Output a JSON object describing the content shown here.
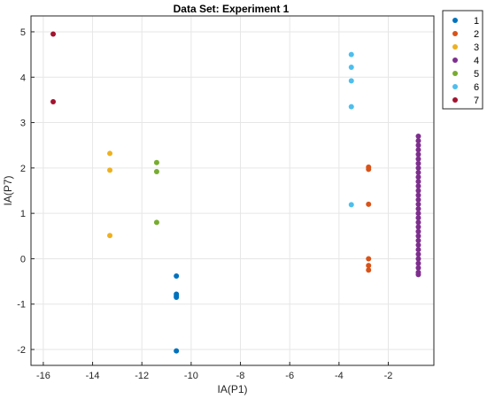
{
  "chart_data": {
    "type": "scatter",
    "title": "Data Set: Experiment 1",
    "xlabel": "IA(P1)",
    "ylabel": "IA(P7)",
    "xlim": [
      -16.5,
      -0.15
    ],
    "ylim": [
      -2.35,
      5.35
    ],
    "xticks": [
      -16,
      -14,
      -12,
      -10,
      -8,
      -6,
      -4,
      -2
    ],
    "yticks": [
      -2,
      -1,
      0,
      1,
      2,
      3,
      4,
      5
    ],
    "grid": true,
    "legend_position": "top-right, outside",
    "series": [
      {
        "name": "1",
        "color": "#0072BD",
        "points": [
          [
            -10.6,
            -0.38
          ],
          [
            -10.6,
            -0.78
          ],
          [
            -10.6,
            -0.82
          ],
          [
            -10.6,
            -0.85
          ],
          [
            -10.6,
            -2.03
          ]
        ]
      },
      {
        "name": "2",
        "color": "#D95319",
        "points": [
          [
            -2.8,
            2.02
          ],
          [
            -2.8,
            1.97
          ],
          [
            -2.8,
            1.2
          ],
          [
            -2.8,
            0.0
          ],
          [
            -2.8,
            -0.15
          ],
          [
            -2.8,
            -0.25
          ]
        ]
      },
      {
        "name": "3",
        "color": "#EDB120",
        "points": [
          [
            -13.3,
            2.32
          ],
          [
            -13.3,
            1.95
          ],
          [
            -13.3,
            0.51
          ]
        ]
      },
      {
        "name": "4",
        "color": "#7E2F8E",
        "points": [
          [
            -0.78,
            2.7
          ],
          [
            -0.78,
            2.6
          ],
          [
            -0.78,
            2.5
          ],
          [
            -0.78,
            2.4
          ],
          [
            -0.78,
            2.3
          ],
          [
            -0.78,
            2.2
          ],
          [
            -0.78,
            2.1
          ],
          [
            -0.78,
            2.0
          ],
          [
            -0.78,
            1.9
          ],
          [
            -0.78,
            1.8
          ],
          [
            -0.78,
            1.7
          ],
          [
            -0.78,
            1.6
          ],
          [
            -0.78,
            1.5
          ],
          [
            -0.78,
            1.4
          ],
          [
            -0.78,
            1.3
          ],
          [
            -0.78,
            1.2
          ],
          [
            -0.78,
            1.1
          ],
          [
            -0.78,
            1.0
          ],
          [
            -0.78,
            0.9
          ],
          [
            -0.78,
            0.8
          ],
          [
            -0.78,
            0.7
          ],
          [
            -0.78,
            0.6
          ],
          [
            -0.78,
            0.5
          ],
          [
            -0.78,
            0.4
          ],
          [
            -0.78,
            0.3
          ],
          [
            -0.78,
            0.2
          ],
          [
            -0.78,
            0.1
          ],
          [
            -0.78,
            0.0
          ],
          [
            -0.78,
            -0.1
          ],
          [
            -0.78,
            -0.2
          ],
          [
            -0.78,
            -0.3
          ],
          [
            -0.78,
            -0.35
          ]
        ]
      },
      {
        "name": "5",
        "color": "#77AC30",
        "points": [
          [
            -11.4,
            2.12
          ],
          [
            -11.4,
            1.92
          ],
          [
            -11.4,
            0.8
          ]
        ]
      },
      {
        "name": "6",
        "color": "#4DBEEE",
        "points": [
          [
            -3.5,
            4.5
          ],
          [
            -3.5,
            4.22
          ],
          [
            -3.5,
            3.92
          ],
          [
            -3.5,
            3.35
          ],
          [
            -3.5,
            1.19
          ]
        ]
      },
      {
        "name": "7",
        "color": "#A2142F",
        "points": [
          [
            -15.6,
            4.95
          ],
          [
            -15.6,
            3.46
          ]
        ]
      }
    ]
  }
}
